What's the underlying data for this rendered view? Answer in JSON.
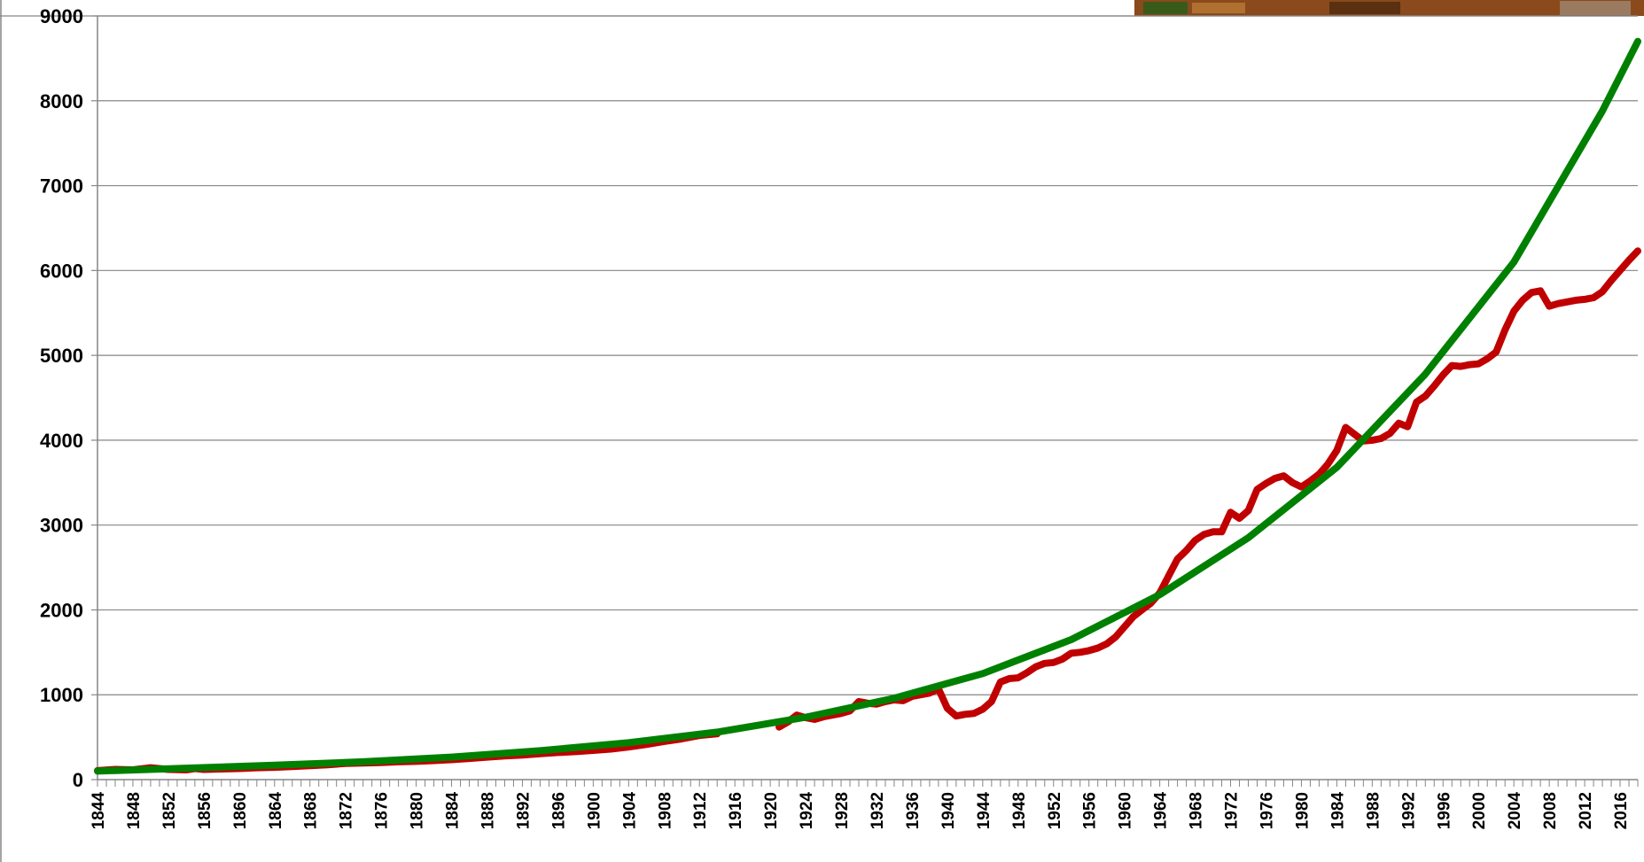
{
  "colors": {
    "background": "#ffffff",
    "gridline": "#868686",
    "axis": "#868686",
    "actual_series": "#c00000",
    "trend_series": "#008000",
    "photo_thumbnail": "#8a4a1c"
  },
  "chart_data": {
    "type": "line",
    "title": "",
    "xlabel": "",
    "ylabel": "",
    "xlim": [
      1844,
      2018
    ],
    "ylim": [
      0,
      9000
    ],
    "grid": true,
    "legend": "none",
    "y_ticks": [
      0,
      1000,
      2000,
      3000,
      4000,
      5000,
      6000,
      7000,
      8000,
      9000
    ],
    "x_tick_labels": [
      "1844",
      "1848",
      "1852",
      "1856",
      "1860",
      "1864",
      "1868",
      "1872",
      "1876",
      "1880",
      "1884",
      "1888",
      "1892",
      "1896",
      "1900",
      "1904",
      "1908",
      "1912",
      "1916",
      "1920",
      "1924",
      "1928",
      "1932",
      "1936",
      "1940",
      "1944",
      "1948",
      "1952",
      "1956",
      "1960",
      "1964",
      "1968",
      "1972",
      "1976",
      "1980",
      "1984",
      "1988",
      "1992",
      "1996",
      "2000",
      "2004",
      "2008",
      "2012",
      "2016"
    ],
    "series": [
      {
        "role": "actual",
        "color": "#c00000",
        "segments": [
          {
            "x": [
              1844,
              1846,
              1848,
              1850,
              1852,
              1854,
              1855,
              1856,
              1858,
              1860,
              1862,
              1864,
              1866,
              1868,
              1870,
              1872,
              1874,
              1876,
              1878,
              1880,
              1882,
              1884,
              1886,
              1888,
              1890,
              1892,
              1894,
              1896,
              1898,
              1900,
              1902,
              1904,
              1906,
              1908,
              1910,
              1912,
              1914
            ],
            "y": [
              105,
              120,
              115,
              140,
              120,
              115,
              130,
              120,
              125,
              130,
              140,
              145,
              155,
              165,
              175,
              190,
              195,
              200,
              210,
              215,
              225,
              235,
              250,
              265,
              280,
              290,
              305,
              320,
              330,
              345,
              360,
              385,
              415,
              450,
              480,
              520,
              540
            ]
          },
          {
            "x": [
              1921,
              1922,
              1923,
              1924,
              1925,
              1926,
              1927,
              1928,
              1929,
              1930,
              1931,
              1932,
              1933,
              1934,
              1935,
              1936,
              1937,
              1938,
              1939,
              1940,
              1941,
              1942,
              1943,
              1944,
              1945,
              1946,
              1947,
              1948,
              1949,
              1950,
              1951,
              1952,
              1953,
              1954,
              1955,
              1956,
              1957,
              1958,
              1959,
              1960,
              1961,
              1962,
              1963,
              1964,
              1965,
              1966,
              1967,
              1968,
              1969,
              1970,
              1971,
              1972,
              1973,
              1974,
              1975,
              1976,
              1977,
              1978,
              1979,
              1980,
              1981,
              1982,
              1983,
              1984,
              1985,
              1986,
              1987,
              1988,
              1989,
              1990,
              1991,
              1992,
              1993,
              1994,
              1995,
              1996,
              1997,
              1998,
              1999,
              2000,
              2001,
              2002,
              2003,
              2004,
              2005,
              2006,
              2007,
              2008,
              2009,
              2010,
              2011,
              2012,
              2013,
              2014,
              2015,
              2016,
              2017,
              2018
            ],
            "y": [
              620,
              680,
              760,
              730,
              710,
              740,
              760,
              780,
              810,
              920,
              900,
              890,
              920,
              940,
              930,
              980,
              1000,
              1020,
              1070,
              840,
              750,
              770,
              780,
              830,
              920,
              1150,
              1190,
              1200,
              1260,
              1330,
              1370,
              1380,
              1420,
              1490,
              1500,
              1520,
              1550,
              1600,
              1680,
              1800,
              1920,
              2000,
              2080,
              2200,
              2400,
              2600,
              2700,
              2820,
              2890,
              2920,
              2920,
              3150,
              3080,
              3170,
              3420,
              3490,
              3550,
              3580,
              3500,
              3450,
              3520,
              3600,
              3720,
              3880,
              4150,
              4070,
              3990,
              4000,
              4020,
              4080,
              4200,
              4160,
              4450,
              4520,
              4640,
              4770,
              4880,
              4870,
              4890,
              4900,
              4960,
              5040,
              5300,
              5520,
              5650,
              5740,
              5760,
              5580,
              5610,
              5630,
              5650,
              5660,
              5680,
              5750,
              5880,
              6000,
              6120,
              6230
            ]
          }
        ]
      },
      {
        "role": "trend",
        "color": "#008000",
        "x": [
          1844,
          1854,
          1864,
          1874,
          1884,
          1894,
          1904,
          1914,
          1924,
          1934,
          1944,
          1954,
          1964,
          1974,
          1984,
          1994,
          2004,
          2014,
          2018
        ],
        "y": [
          100,
          135,
          170,
          210,
          265,
          340,
          435,
          560,
          735,
          960,
          1250,
          1650,
          2180,
          2850,
          3680,
          4780,
          6100,
          7880,
          8700
        ]
      }
    ]
  },
  "thumbnail": {
    "name": "produce-photo-thumbnail"
  }
}
